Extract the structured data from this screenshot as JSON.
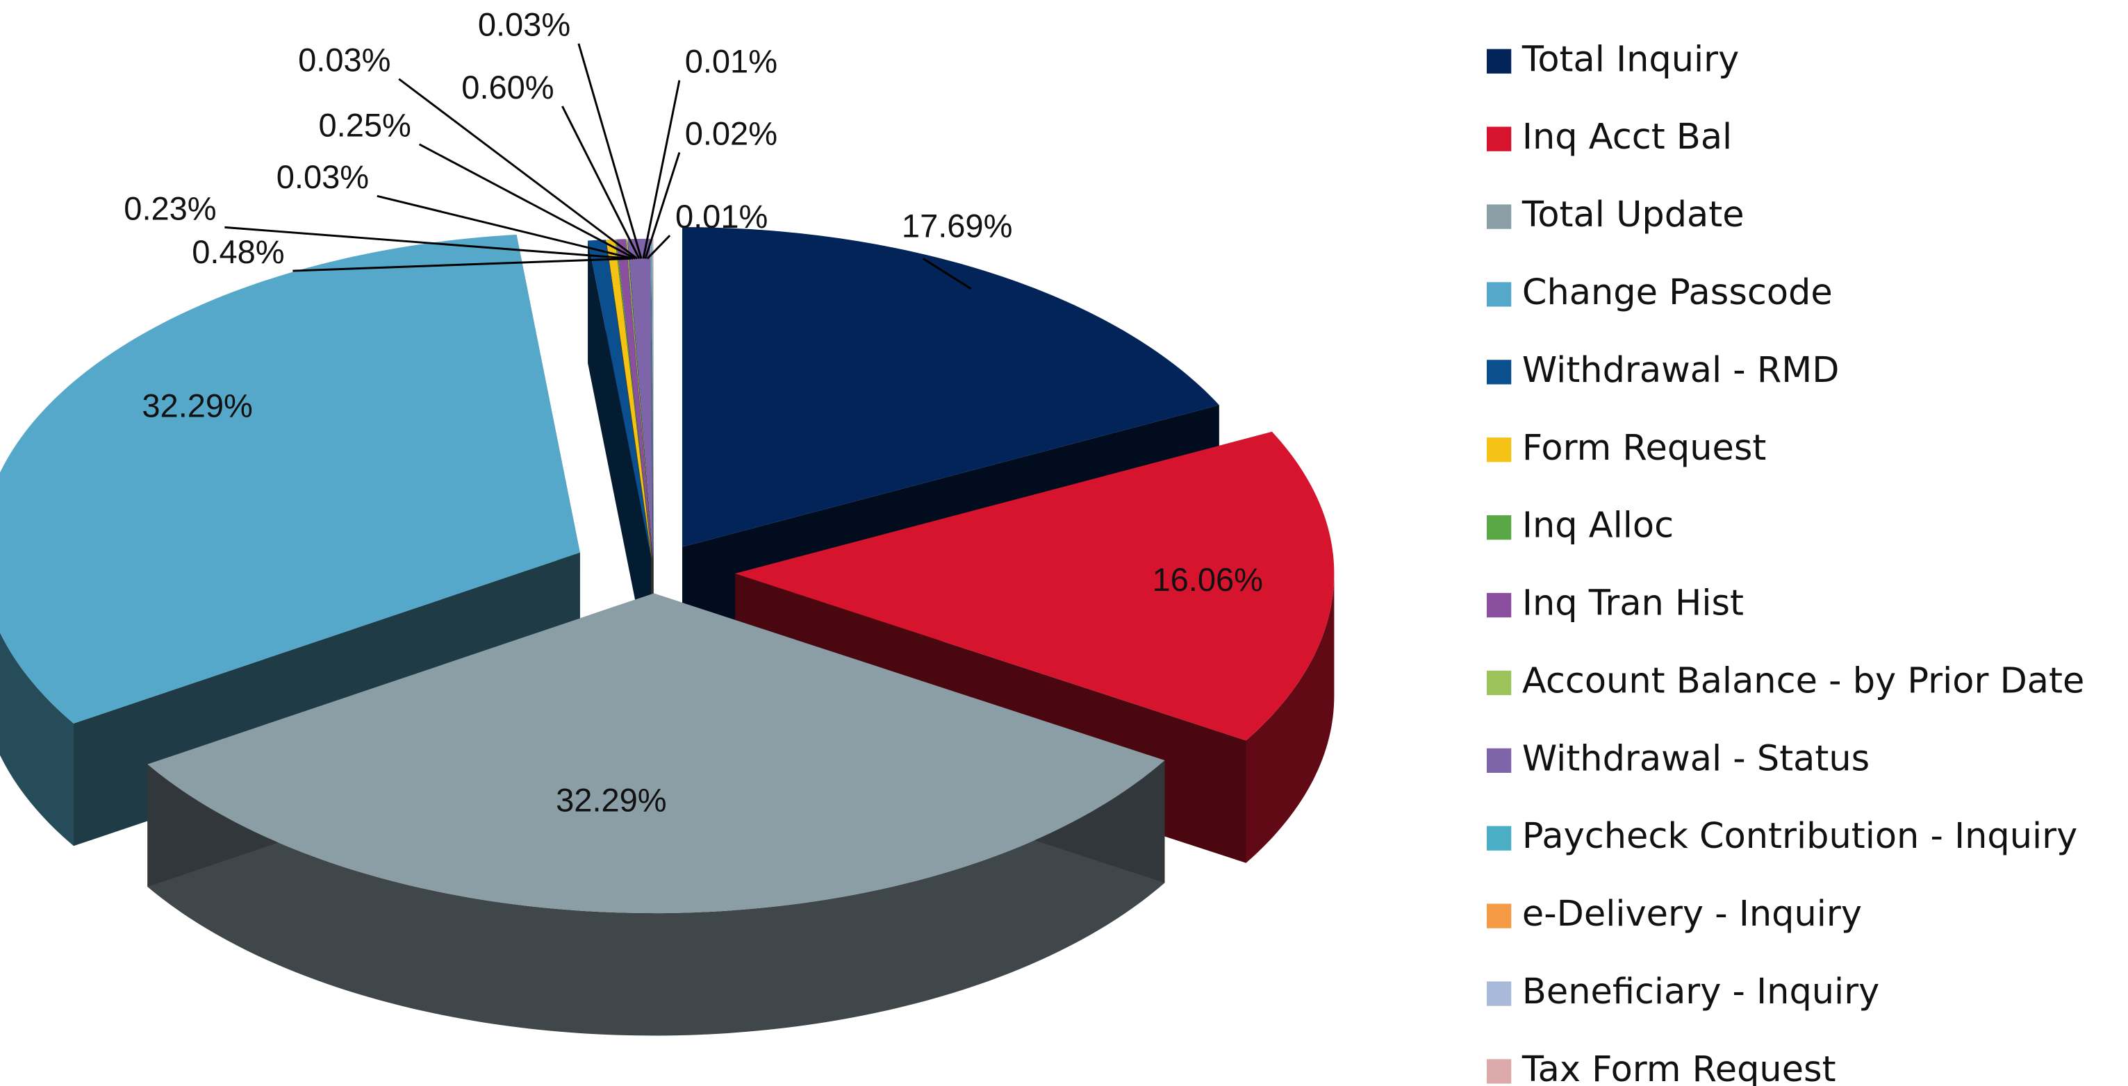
{
  "chart_data": {
    "type": "pie",
    "categories": [
      "Total Inquiry",
      "Inq Acct Bal",
      "Total Update",
      "Change Passcode",
      "Withdrawal - RMD",
      "Form Request",
      "Inq Alloc",
      "Inq Tran Hist",
      "Account Balance - by Prior Date",
      "Withdrawal - Status",
      "Paycheck Contribution - Inquiry",
      "e-Delivery - Inquiry",
      "Beneficiary - Inquiry",
      "Tax Form Request"
    ],
    "values": [
      17.69,
      16.06,
      32.29,
      32.29,
      0.48,
      0.23,
      0.03,
      0.25,
      0.03,
      0.6,
      0.03,
      0.01,
      0.02,
      0.01
    ],
    "value_labels": [
      "17.69%",
      "16.06%",
      "32.29%",
      "32.29%",
      "0.48%",
      "0.23%",
      "0.03%",
      "0.25%",
      "0.03%",
      "0.60%",
      "0.03%",
      "0.01%",
      "0.02%",
      "0.01%"
    ],
    "colors": [
      "#022459",
      "#d7142e",
      "#8b9ea6",
      "#55a8c9",
      "#0b4f8f",
      "#f5c216",
      "#5aa845",
      "#8a4f9e",
      "#9cc25a",
      "#7e64a8",
      "#4aafc5",
      "#f59a45",
      "#a9b9d9",
      "#dcaaaa"
    ],
    "legend": "right"
  }
}
